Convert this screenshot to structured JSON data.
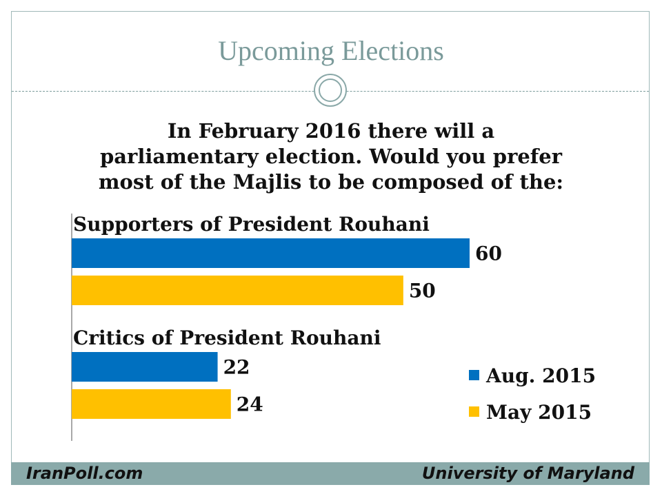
{
  "slide": {
    "title": "Upcoming Elections",
    "question": "In February 2016 there will a\nparliamentary election. Would you prefer\nmost of the Majlis to be composed of the:"
  },
  "chart_data": {
    "type": "bar",
    "orientation": "horizontal",
    "categories": [
      "Supporters of President Rouhani",
      "Critics of President Rouhani"
    ],
    "series": [
      {
        "name": "Aug. 2015",
        "color": "#0070c0",
        "values": [
          60,
          22
        ]
      },
      {
        "name": "May 2015",
        "color": "#ffc000",
        "values": [
          50,
          24
        ]
      }
    ],
    "xlim": [
      0,
      100
    ],
    "grid": false,
    "legend": "bottom-right"
  },
  "footer": {
    "left": "IranPoll.com",
    "right": "University of Maryland"
  },
  "colors": {
    "title": "#7a9a9a",
    "footer_bar": "#8aaaaa"
  }
}
